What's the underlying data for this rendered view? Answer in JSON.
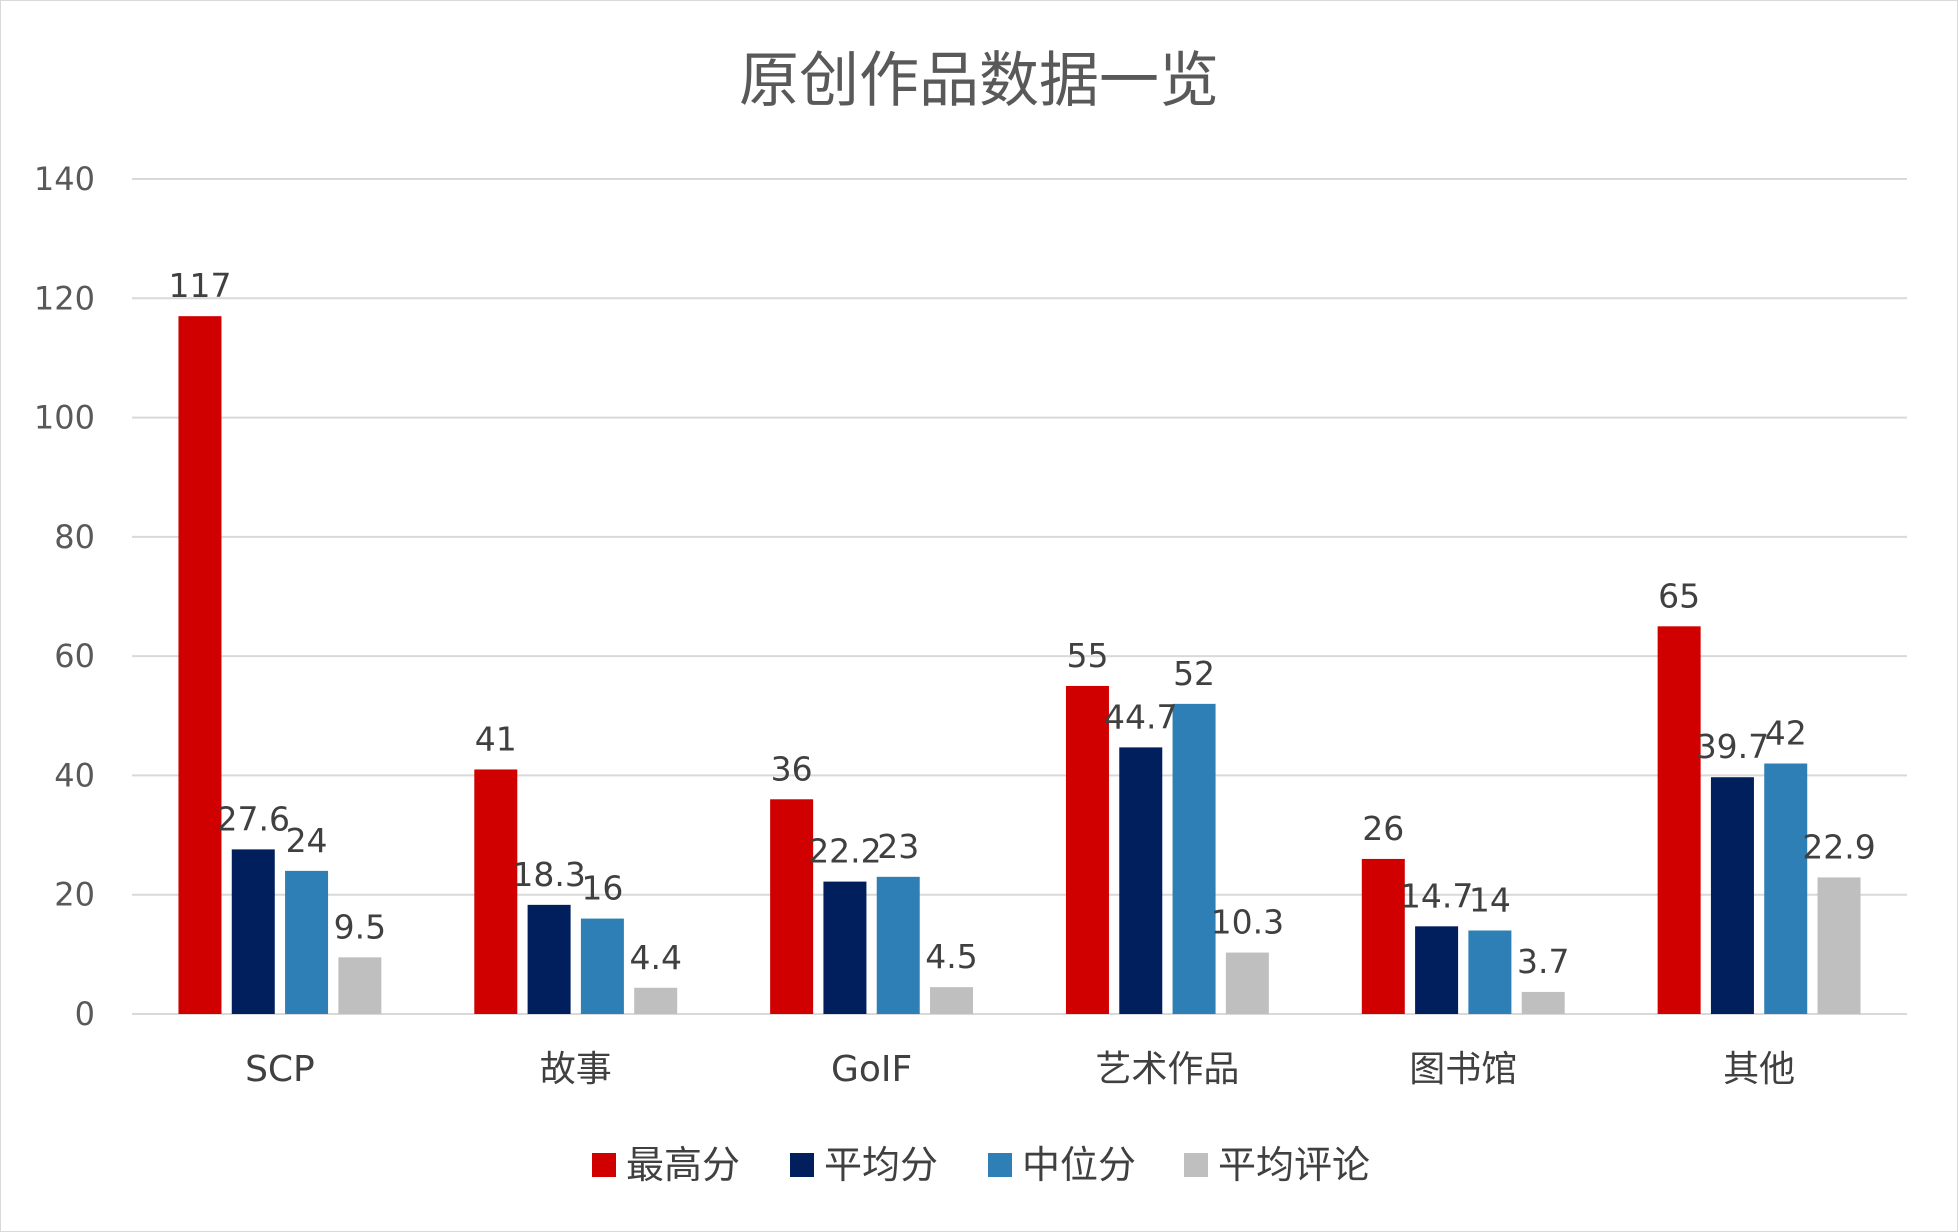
{
  "chart_data": {
    "type": "bar",
    "title": "原创作品数据一览",
    "xlabel": "",
    "ylabel": "",
    "ylim": [
      0,
      140
    ],
    "yticks": [
      0,
      20,
      40,
      60,
      80,
      100,
      120,
      140
    ],
    "grid": true,
    "legend_position": "bottom",
    "categories": [
      "SCP",
      "故事",
      "GoIF",
      "艺术作品",
      "图书馆",
      "其他"
    ],
    "series": [
      {
        "name": "最高分",
        "color": "#D00000",
        "values": [
          117,
          41,
          36,
          55,
          26,
          65
        ]
      },
      {
        "name": "平均分",
        "color": "#001F5C",
        "values": [
          27.6,
          18.3,
          22.2,
          44.7,
          14.7,
          39.7
        ]
      },
      {
        "name": "中位分",
        "color": "#2E7FB5",
        "values": [
          24,
          16,
          23,
          52,
          14,
          42
        ]
      },
      {
        "name": "平均评论",
        "color": "#BFBFBF",
        "values": [
          9.5,
          4.4,
          4.5,
          10.3,
          3.7,
          22.9
        ]
      }
    ]
  }
}
